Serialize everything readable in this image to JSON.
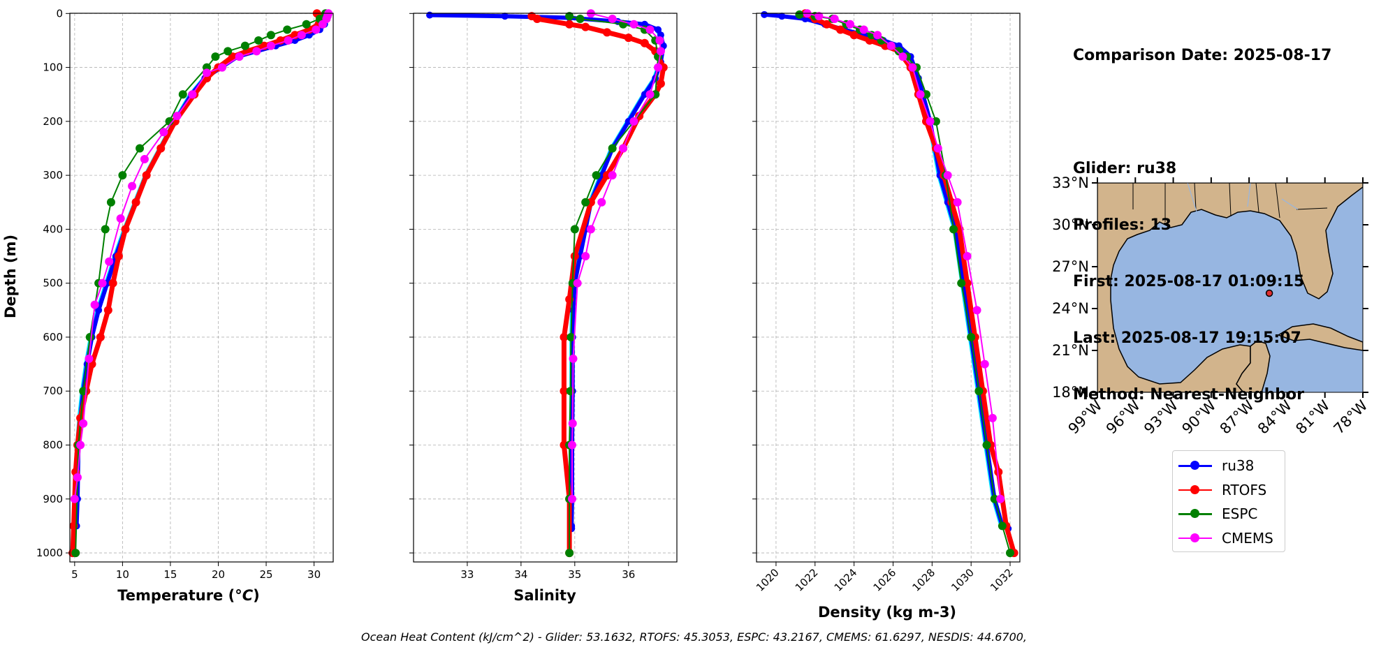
{
  "info": {
    "comparison_date": "Comparison Date: 2025-08-17",
    "glider": "Glider: ru38",
    "profiles": "Profiles: 13",
    "first": "First: 2025-08-17 01:09:15",
    "last": "Last: 2025-08-17 19:15:07",
    "method": "Method: Nearest-Neighbor"
  },
  "footer": "Ocean Heat Content (kJ/cm^2) - Glider: 53.1632,  RTOFS: 45.3053,  ESPC: 43.2167,  CMEMS: 61.6297,  NESDIS: 44.6700,",
  "colors": {
    "ru38": "#0000ff",
    "ru38_light": "#00e5ff",
    "RTOFS": "#ff0000",
    "ESPC": "#008000",
    "CMEMS": "#ff00ff",
    "ocean": "#97b6e1",
    "land": "#d2b48c",
    "grid": "#b0b0b0"
  },
  "chart_data": [
    {
      "type": "line",
      "xlabel": "Temperature (°C)",
      "ylabel": "Depth (m)",
      "xlim": [
        4.5,
        32
      ],
      "ylim": [
        1000,
        0
      ],
      "xticks": [
        5,
        10,
        15,
        20,
        25,
        30
      ],
      "yticks": [
        0,
        100,
        200,
        300,
        400,
        500,
        600,
        700,
        800,
        900,
        1000
      ],
      "grid": true,
      "series": [
        {
          "name": "ru38",
          "x": [
            31.3,
            31.1,
            30.6,
            29.5,
            28.0,
            26.0,
            24.0,
            22.0,
            20.3,
            18.6,
            17.2,
            15.5,
            14.0,
            12.5,
            11.4,
            10.3,
            9.3,
            8.4,
            7.5,
            6.8,
            6.3,
            5.9,
            5.6,
            5.4,
            5.3,
            5.2
          ],
          "y": [
            0,
            20,
            30,
            40,
            50,
            60,
            70,
            80,
            100,
            120,
            150,
            200,
            250,
            300,
            350,
            400,
            450,
            500,
            550,
            600,
            650,
            700,
            750,
            800,
            900,
            950
          ]
        },
        {
          "name": "RTOFS",
          "x": [
            30.3,
            30.6,
            30.8,
            30.5,
            29.5,
            28.0,
            26.5,
            24.8,
            23.0,
            21.5,
            20.0,
            18.8,
            17.5,
            15.5,
            14.0,
            12.5,
            11.4,
            10.3,
            9.6,
            9.0,
            8.5,
            7.7,
            6.8,
            6.2,
            5.6,
            5.3,
            5.1,
            4.9,
            4.8
          ],
          "y": [
            0,
            5,
            10,
            20,
            30,
            40,
            50,
            60,
            70,
            80,
            100,
            120,
            150,
            200,
            250,
            300,
            350,
            400,
            450,
            500,
            550,
            600,
            650,
            700,
            750,
            800,
            850,
            950,
            1000
          ]
        },
        {
          "name": "ESPC",
          "x": [
            31.2,
            30.6,
            29.2,
            27.2,
            25.5,
            24.2,
            22.8,
            21.0,
            19.7,
            18.8,
            16.3,
            14.9,
            11.8,
            10.0,
            8.8,
            8.2,
            7.5,
            6.6,
            5.9,
            5.4,
            5.1
          ],
          "y": [
            0,
            10,
            20,
            30,
            40,
            50,
            60,
            70,
            80,
            100,
            150,
            200,
            250,
            300,
            350,
            400,
            500,
            600,
            700,
            800,
            1000
          ]
        },
        {
          "name": "CMEMS",
          "x": [
            31.5,
            31.4,
            31.3,
            30.9,
            30.2,
            28.7,
            27.3,
            25.5,
            24.0,
            22.2,
            20.4,
            18.8,
            17.3,
            15.7,
            14.3,
            12.3,
            11.0,
            9.8,
            8.6,
            7.9,
            7.1,
            6.5,
            5.9,
            5.6,
            5.3,
            5.0
          ],
          "y": [
            0,
            5,
            10,
            20,
            30,
            40,
            50,
            60,
            70,
            80,
            100,
            110,
            150,
            190,
            220,
            270,
            320,
            380,
            460,
            500,
            540,
            640,
            760,
            800,
            860,
            900
          ]
        }
      ]
    },
    {
      "type": "line",
      "xlabel": "Salinity",
      "xlim": [
        32.0,
        36.9
      ],
      "ylim": [
        1000,
        0
      ],
      "xticks": [
        33,
        34,
        35,
        36
      ],
      "yticks": [
        0,
        100,
        200,
        300,
        400,
        500,
        600,
        700,
        800,
        900,
        1000
      ],
      "grid": true,
      "series": [
        {
          "name": "ru38",
          "x": [
            32.3,
            33.7,
            34.9,
            35.8,
            36.3,
            36.55,
            36.6,
            36.65,
            36.6,
            36.5,
            36.3,
            36.0,
            35.7,
            35.5,
            35.3,
            35.2,
            35.1,
            35.0,
            34.97,
            34.96,
            34.96,
            34.95,
            34.95,
            34.94,
            34.94
          ],
          "y": [
            3,
            5,
            8,
            15,
            20,
            30,
            40,
            60,
            90,
            120,
            150,
            200,
            250,
            300,
            350,
            400,
            450,
            500,
            550,
            600,
            700,
            800,
            900,
            950,
            955
          ]
        },
        {
          "name": "RTOFS",
          "x": [
            34.2,
            34.3,
            34.9,
            35.2,
            35.6,
            36.0,
            36.3,
            36.5,
            36.65,
            36.6,
            36.5,
            36.2,
            35.9,
            35.6,
            35.3,
            35.0,
            34.9,
            34.8,
            34.8,
            34.8,
            34.9,
            34.9
          ],
          "y": [
            5,
            10,
            20,
            25,
            35,
            45,
            55,
            70,
            100,
            130,
            150,
            190,
            250,
            300,
            350,
            450,
            530,
            600,
            700,
            800,
            900,
            1000
          ]
        },
        {
          "name": "ESPC",
          "x": [
            34.9,
            35.1,
            35.9,
            36.3,
            36.5,
            36.55,
            36.5,
            36.1,
            35.7,
            35.4,
            35.2,
            35.0,
            34.96,
            34.93,
            34.92,
            34.9,
            34.9,
            34.9
          ],
          "y": [
            5,
            10,
            20,
            30,
            50,
            80,
            150,
            200,
            250,
            300,
            350,
            400,
            500,
            600,
            700,
            800,
            900,
            1000
          ]
        },
        {
          "name": "CMEMS",
          "x": [
            35.3,
            35.7,
            36.1,
            36.4,
            36.58,
            36.6,
            36.55,
            36.4,
            36.1,
            35.9,
            35.7,
            35.5,
            35.3,
            35.2,
            35.05,
            34.97,
            34.96,
            34.95,
            34.95
          ],
          "y": [
            0,
            10,
            20,
            30,
            50,
            70,
            100,
            150,
            200,
            250,
            300,
            350,
            400,
            450,
            500,
            640,
            760,
            800,
            900
          ]
        }
      ]
    },
    {
      "type": "line",
      "xlabel": "Density (kg m-3)",
      "xlim": [
        1019,
        1032.5
      ],
      "ylim": [
        1000,
        0
      ],
      "xticks": [
        1020,
        1022,
        1024,
        1026,
        1028,
        1030,
        1032
      ],
      "yticks": [
        0,
        100,
        200,
        300,
        400,
        500,
        600,
        700,
        800,
        900,
        1000
      ],
      "grid": true,
      "series": [
        {
          "name": "ru38",
          "x": [
            1019.4,
            1020.3,
            1021.5,
            1022.5,
            1023.5,
            1024.5,
            1025.5,
            1026.3,
            1026.9,
            1027.3,
            1027.9,
            1028.4,
            1028.8,
            1029.2,
            1029.6,
            1030.0,
            1030.4,
            1030.8,
            1031.2,
            1031.6,
            1031.9
          ],
          "y": [
            2,
            5,
            10,
            20,
            30,
            40,
            50,
            60,
            80,
            120,
            200,
            300,
            350,
            400,
            500,
            600,
            700,
            800,
            900,
            950,
            955
          ]
        },
        {
          "name": "RTOFS",
          "x": [
            1021.5,
            1022.0,
            1022.6,
            1023.3,
            1024.0,
            1024.8,
            1025.6,
            1026.3,
            1026.9,
            1027.3,
            1027.7,
            1028.2,
            1028.6,
            1029.0,
            1029.4,
            1029.8,
            1030.2,
            1030.6,
            1031.0,
            1031.4,
            1031.8,
            1032.2
          ],
          "y": [
            0,
            10,
            20,
            30,
            40,
            50,
            60,
            70,
            100,
            150,
            200,
            250,
            300,
            350,
            400,
            500,
            600,
            700,
            800,
            850,
            950,
            1000
          ]
        },
        {
          "name": "ESPC",
          "x": [
            1021.2,
            1022.0,
            1022.9,
            1023.6,
            1024.3,
            1024.9,
            1025.4,
            1025.9,
            1026.3,
            1026.7,
            1027.2,
            1027.7,
            1028.2,
            1028.7,
            1029.1,
            1029.5,
            1030.0,
            1030.4,
            1030.8,
            1031.2,
            1031.6,
            1032.0
          ],
          "y": [
            2,
            5,
            10,
            20,
            30,
            40,
            50,
            60,
            70,
            80,
            100,
            150,
            200,
            300,
            400,
            500,
            600,
            700,
            800,
            900,
            950,
            1000
          ]
        },
        {
          "name": "CMEMS",
          "x": [
            1021.6,
            1022.2,
            1023.0,
            1023.8,
            1024.5,
            1025.2,
            1025.9,
            1026.5,
            1027.0,
            1027.4,
            1027.9,
            1028.3,
            1028.8,
            1029.3,
            1029.8,
            1030.3,
            1030.7,
            1031.1,
            1031.5
          ],
          "y": [
            0,
            5,
            10,
            20,
            30,
            40,
            60,
            80,
            100,
            150,
            200,
            250,
            300,
            350,
            450,
            550,
            650,
            750,
            900
          ]
        }
      ]
    }
  ],
  "map": {
    "lat_ticks": [
      "33°N",
      "30°N",
      "27°N",
      "24°N",
      "21°N",
      "18°N"
    ],
    "lon_ticks": [
      "99°W",
      "96°W",
      "93°W",
      "90°W",
      "87°W",
      "84°W",
      "81°W",
      "78°W"
    ],
    "lon_range": [
      -99,
      -78
    ],
    "lat_range": [
      18,
      33
    ],
    "marker": {
      "lon": -85.4,
      "lat": 25.1
    }
  },
  "legend": [
    "ru38",
    "RTOFS",
    "ESPC",
    "CMEMS"
  ]
}
